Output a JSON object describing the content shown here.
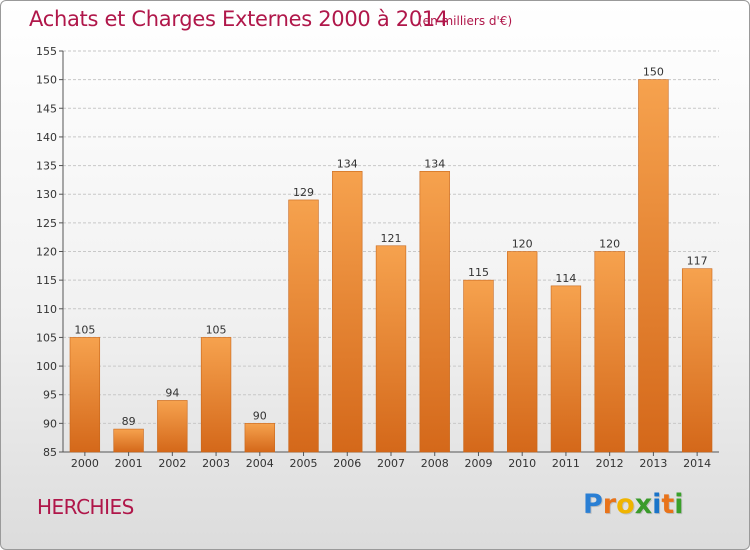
{
  "title": "Achats et Charges Externes 2000 à 2014",
  "unit": "(en milliers d'€)",
  "commune": "HERCHIES",
  "logo": {
    "letters": [
      "P",
      "r",
      "o",
      "x",
      "i",
      "t",
      "i"
    ],
    "colors": [
      "#2a7fd4",
      "#e8731a",
      "#f0b400",
      "#3a9b2a",
      "#1a74c9",
      "#e8731a",
      "#3aa02a"
    ]
  },
  "colors": {
    "bar_top": "#f6a24e",
    "bar_bottom": "#d4681a",
    "accent": "#b0174a"
  },
  "chart_data": {
    "type": "bar",
    "title": "Achats et Charges Externes 2000 à 2014",
    "subtitle": "(en milliers d'€)",
    "categories": [
      "2000",
      "2001",
      "2002",
      "2003",
      "2004",
      "2005",
      "2006",
      "2007",
      "2008",
      "2009",
      "2010",
      "2011",
      "2012",
      "2013",
      "2014"
    ],
    "values": [
      105,
      89,
      94,
      105,
      90,
      129,
      134,
      121,
      134,
      115,
      120,
      114,
      120,
      150,
      117
    ],
    "ylim": [
      85,
      155
    ],
    "yticks": [
      85,
      90,
      95,
      100,
      105,
      110,
      115,
      120,
      125,
      130,
      135,
      140,
      145,
      150,
      155
    ],
    "grid": true,
    "xlabel": "",
    "ylabel": ""
  }
}
